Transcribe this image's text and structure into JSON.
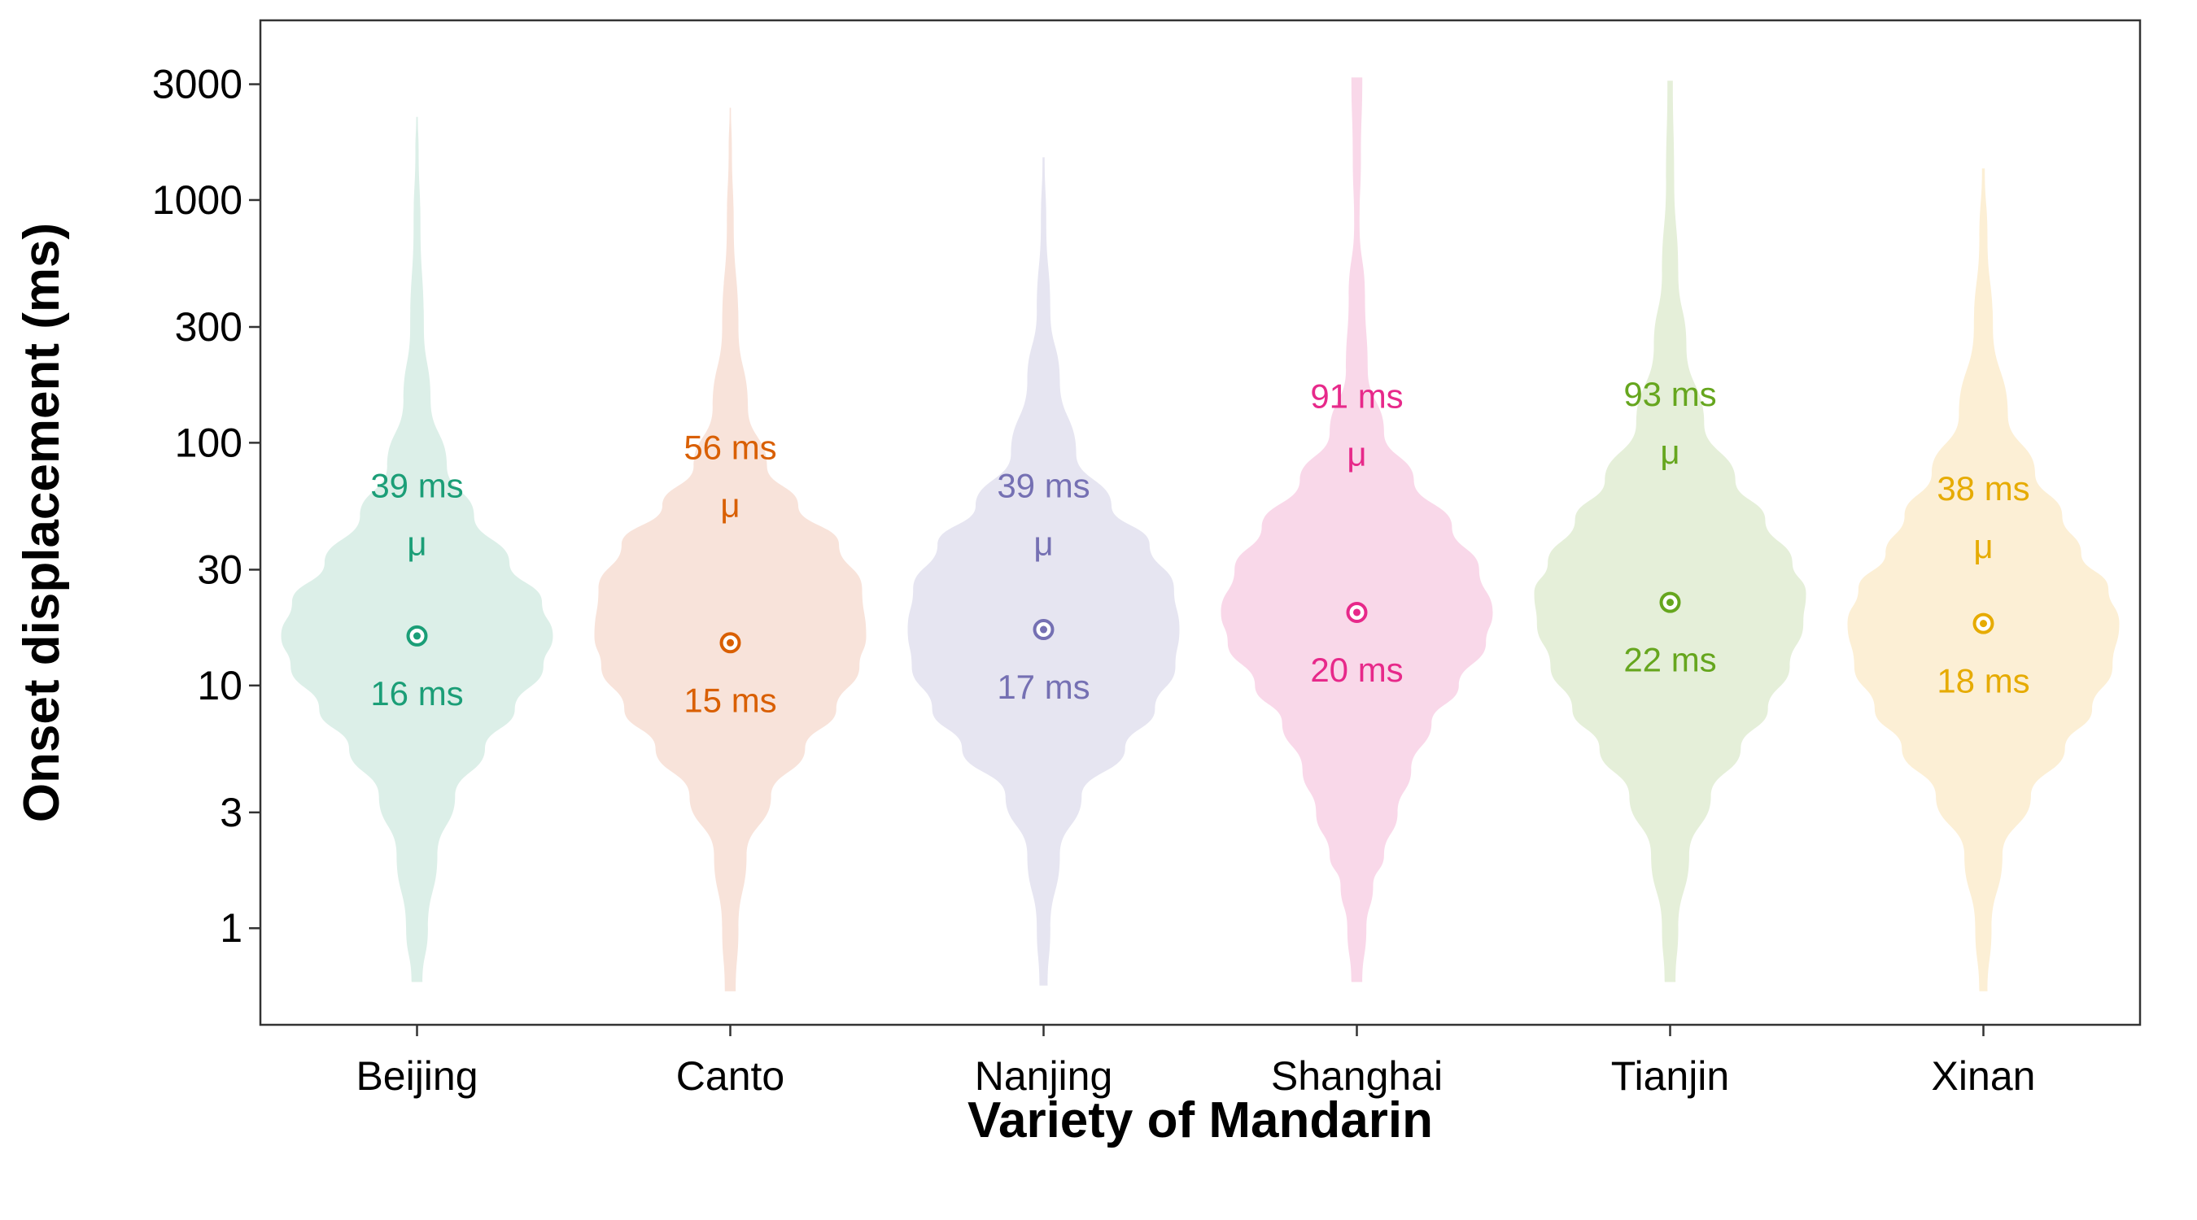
{
  "chart_data": {
    "type": "violin",
    "title": "",
    "xlabel": "Variety of Mandarin",
    "ylabel": "Onset displacement (ms)",
    "y_scale": "log",
    "ylim": [
      0.4,
      5500
    ],
    "y_ticks": [
      1,
      3,
      10,
      30,
      100,
      300,
      1000,
      3000
    ],
    "y_tick_labels": [
      "1",
      "3",
      "10",
      "30",
      "100",
      "300",
      "1000",
      "3000"
    ],
    "grid": false,
    "legend": "none",
    "categories": [
      "Beijing",
      "Canto",
      "Nanjing",
      "Shanghai",
      "Tianjin",
      "Xinan"
    ],
    "series": [
      {
        "category": "Beijing",
        "color": "#1b9e77",
        "fill": "#dcefe8",
        "median": 16,
        "median_label": "16 ms",
        "mean": 39,
        "mean_label": "39 ms",
        "mean_symbol": "μ",
        "min": 0.6,
        "max": 2200,
        "density": [
          [
            0.6,
            0.04
          ],
          [
            1,
            0.08
          ],
          [
            2,
            0.15
          ],
          [
            3.5,
            0.28
          ],
          [
            5.5,
            0.5
          ],
          [
            8,
            0.72
          ],
          [
            12,
            0.93
          ],
          [
            16,
            1.0
          ],
          [
            22,
            0.92
          ],
          [
            32,
            0.68
          ],
          [
            50,
            0.42
          ],
          [
            80,
            0.22
          ],
          [
            150,
            0.1
          ],
          [
            300,
            0.05
          ],
          [
            800,
            0.025
          ],
          [
            1600,
            0.012
          ],
          [
            2200,
            0.006
          ]
        ]
      },
      {
        "category": "Canto",
        "color": "#d95f02",
        "fill": "#f8e3da",
        "median": 15,
        "median_label": "15 ms",
        "mean": 56,
        "mean_label": "56 ms",
        "mean_symbol": "μ",
        "min": 0.55,
        "max": 2400,
        "density": [
          [
            0.55,
            0.04
          ],
          [
            1,
            0.06
          ],
          [
            2,
            0.12
          ],
          [
            3.5,
            0.3
          ],
          [
            5.5,
            0.55
          ],
          [
            8,
            0.78
          ],
          [
            12,
            0.95
          ],
          [
            16,
            1.0
          ],
          [
            25,
            0.97
          ],
          [
            38,
            0.8
          ],
          [
            55,
            0.5
          ],
          [
            80,
            0.27
          ],
          [
            140,
            0.13
          ],
          [
            300,
            0.06
          ],
          [
            800,
            0.025
          ],
          [
            1600,
            0.012
          ],
          [
            2400,
            0.005
          ]
        ]
      },
      {
        "category": "Nanjing",
        "color": "#7570b3",
        "fill": "#e6e5f1",
        "median": 17,
        "median_label": "17 ms",
        "mean": 39,
        "mean_label": "39 ms",
        "mean_symbol": "μ",
        "min": 0.58,
        "max": 1500,
        "density": [
          [
            0.58,
            0.03
          ],
          [
            1,
            0.05
          ],
          [
            2,
            0.12
          ],
          [
            3.5,
            0.28
          ],
          [
            5.5,
            0.6
          ],
          [
            8,
            0.82
          ],
          [
            12,
            0.97
          ],
          [
            17,
            1.0
          ],
          [
            25,
            0.96
          ],
          [
            38,
            0.78
          ],
          [
            55,
            0.5
          ],
          [
            90,
            0.24
          ],
          [
            180,
            0.12
          ],
          [
            350,
            0.05
          ],
          [
            800,
            0.02
          ],
          [
            1500,
            0.008
          ]
        ]
      },
      {
        "category": "Shanghai",
        "color": "#e7298a",
        "fill": "#f9d8e9",
        "median": 20,
        "median_label": "20 ms",
        "mean": 91,
        "mean_label": "91 ms",
        "mean_symbol": "μ",
        "min": 0.6,
        "max": 3200,
        "density": [
          [
            0.6,
            0.04
          ],
          [
            1,
            0.07
          ],
          [
            1.5,
            0.12
          ],
          [
            2,
            0.2
          ],
          [
            3,
            0.3
          ],
          [
            4.5,
            0.4
          ],
          [
            7,
            0.55
          ],
          [
            10,
            0.75
          ],
          [
            15,
            0.95
          ],
          [
            20,
            1.0
          ],
          [
            30,
            0.9
          ],
          [
            45,
            0.7
          ],
          [
            70,
            0.42
          ],
          [
            110,
            0.2
          ],
          [
            200,
            0.08
          ],
          [
            400,
            0.06
          ],
          [
            800,
            0.02
          ],
          [
            1500,
            0.03
          ],
          [
            3200,
            0.04
          ]
        ]
      },
      {
        "category": "Tianjin",
        "color": "#66a61e",
        "fill": "#e5efd9",
        "median": 22,
        "median_label": "22 ms",
        "mean": 93,
        "mean_label": "93 ms",
        "mean_symbol": "μ",
        "min": 0.6,
        "max": 3100,
        "density": [
          [
            0.6,
            0.04
          ],
          [
            1,
            0.06
          ],
          [
            2,
            0.14
          ],
          [
            3.5,
            0.3
          ],
          [
            5.5,
            0.52
          ],
          [
            8,
            0.72
          ],
          [
            12,
            0.88
          ],
          [
            18,
            0.98
          ],
          [
            24,
            1.0
          ],
          [
            32,
            0.9
          ],
          [
            48,
            0.7
          ],
          [
            70,
            0.48
          ],
          [
            120,
            0.25
          ],
          [
            250,
            0.12
          ],
          [
            500,
            0.06
          ],
          [
            1200,
            0.03
          ],
          [
            3100,
            0.02
          ]
        ]
      },
      {
        "category": "Xinan",
        "color": "#e6ab02",
        "fill": "#fcefd5",
        "median": 18,
        "median_label": "18 ms",
        "mean": 38,
        "mean_label": "38 ms",
        "mean_symbol": "μ",
        "min": 0.55,
        "max": 1350,
        "density": [
          [
            0.55,
            0.03
          ],
          [
            1,
            0.06
          ],
          [
            2,
            0.14
          ],
          [
            3.5,
            0.35
          ],
          [
            5.5,
            0.6
          ],
          [
            8,
            0.8
          ],
          [
            12,
            0.95
          ],
          [
            18,
            1.0
          ],
          [
            25,
            0.92
          ],
          [
            35,
            0.72
          ],
          [
            50,
            0.58
          ],
          [
            75,
            0.38
          ],
          [
            130,
            0.18
          ],
          [
            300,
            0.07
          ],
          [
            700,
            0.03
          ],
          [
            1350,
            0.01
          ]
        ]
      }
    ]
  }
}
